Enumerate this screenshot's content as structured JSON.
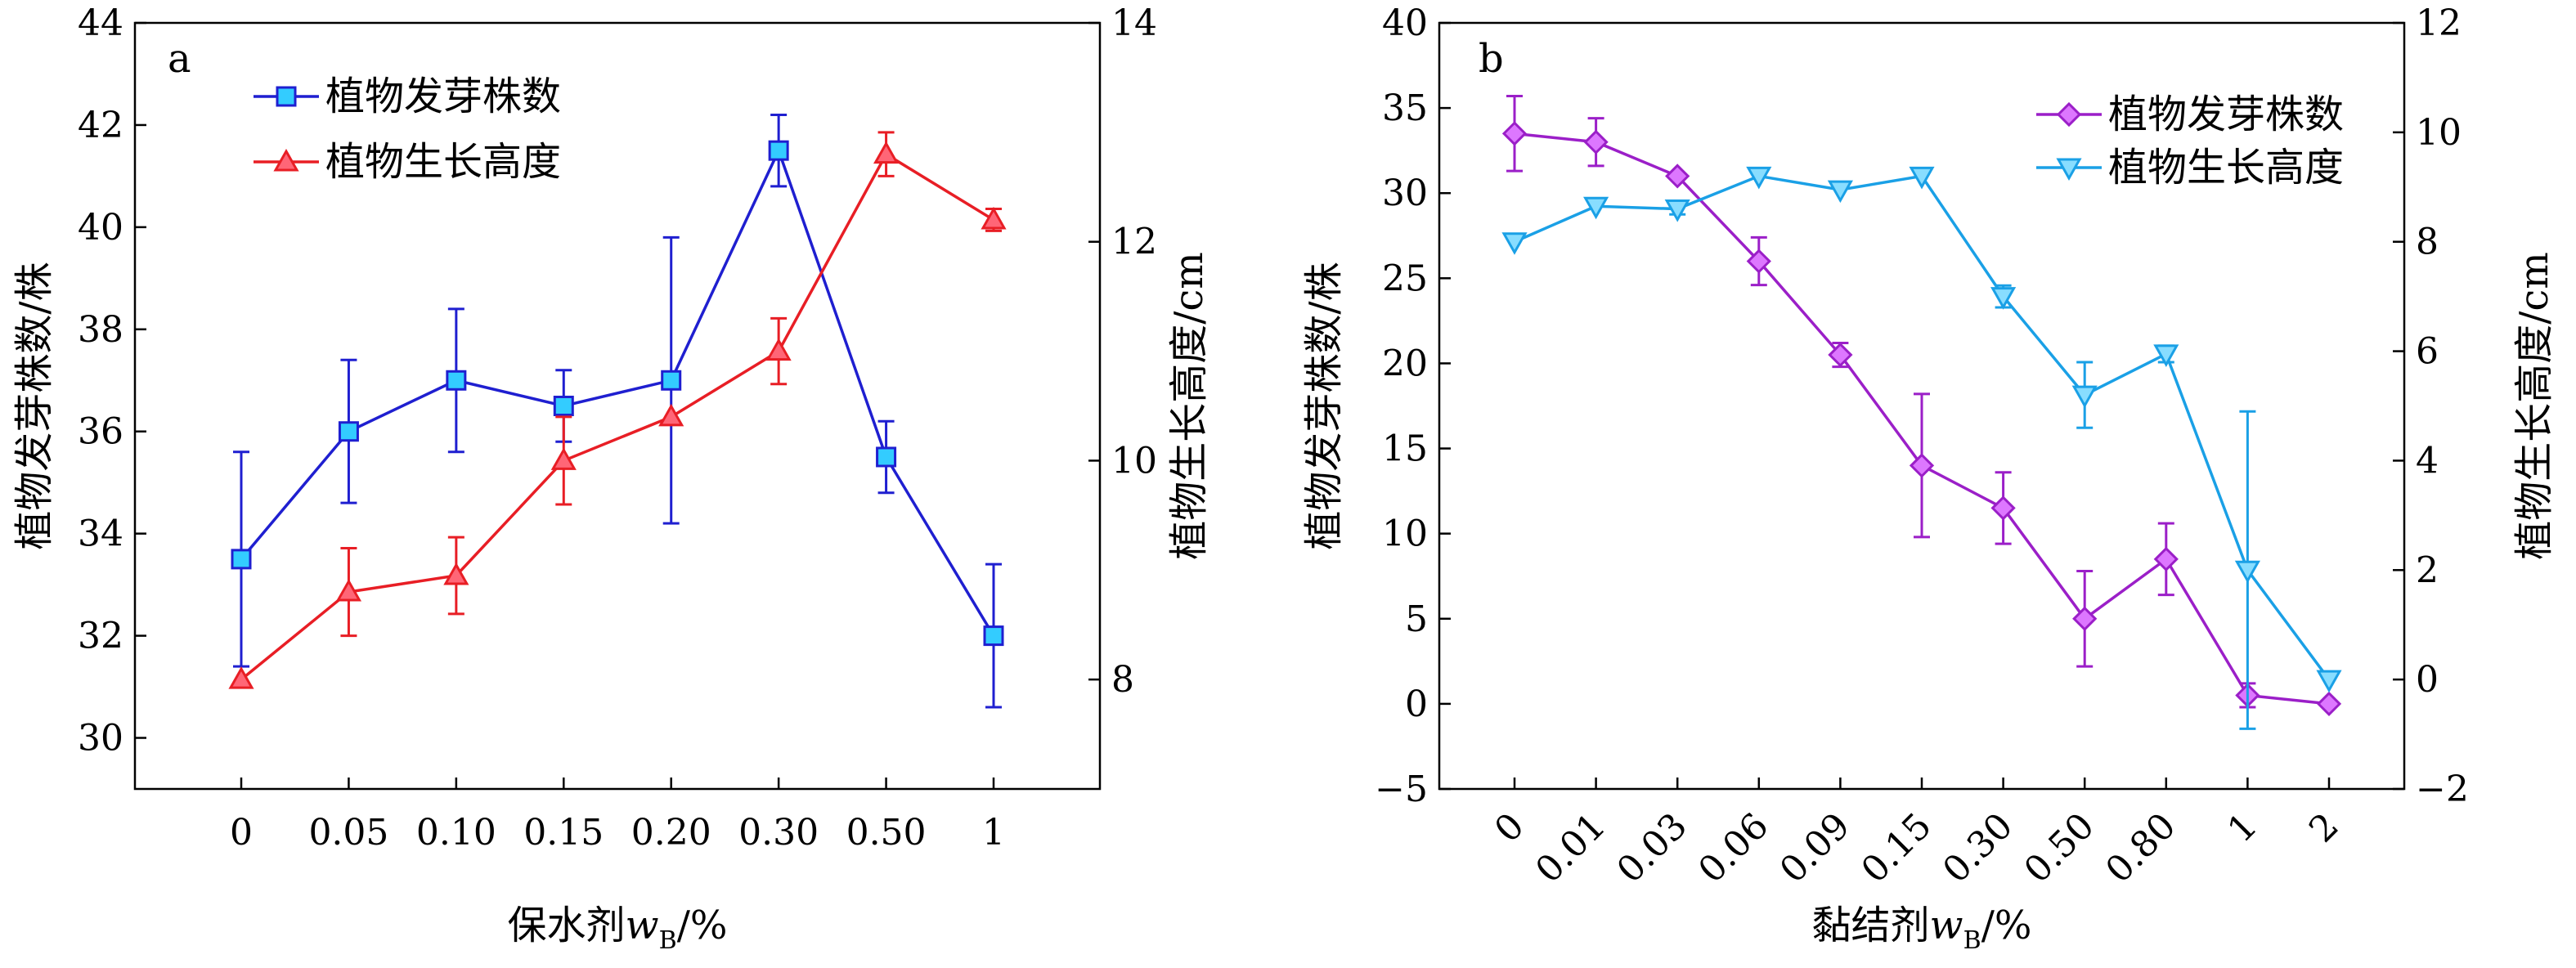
{
  "chart_data": [
    {
      "type": "line",
      "panel_label": "a",
      "xlabel_prefix": "保水剂",
      "xlabel_var": "w",
      "xlabel_sub": "B",
      "xlabel_suffix": "/%",
      "categories": [
        "0",
        "0.05",
        "0.10",
        "0.15",
        "0.20",
        "0.30",
        "0.50",
        "1"
      ],
      "ylabel_left": "植物发芽株数/株",
      "ylabel_right": "植物生长高度/cm",
      "ylim_left": [
        29,
        44
      ],
      "yticks_left": [
        "30",
        "32",
        "34",
        "36",
        "38",
        "40",
        "42",
        "44"
      ],
      "ylim_right": [
        7,
        14
      ],
      "yticks_right": [
        "8",
        "10",
        "12",
        "14"
      ],
      "legend_position": "top-left",
      "series": [
        {
          "name": "植物发芽株数",
          "axis": "left",
          "color": "#1f1fd0",
          "marker": "square",
          "marker_fill": "#33ccff",
          "values": [
            33.5,
            36.0,
            37.0,
            36.5,
            37.0,
            41.5,
            35.5,
            32.0
          ],
          "errors": [
            2.1,
            1.4,
            1.4,
            0.7,
            2.8,
            0.7,
            0.7,
            1.4
          ]
        },
        {
          "name": "植物生长高度",
          "axis": "right",
          "color": "#e81e25",
          "marker": "triangle-up",
          "marker_fill": "#ff6677",
          "values": [
            8.0,
            8.8,
            8.95,
            10.0,
            10.4,
            11.0,
            12.8,
            12.2
          ],
          "errors": [
            0.0,
            0.4,
            0.35,
            0.4,
            0.0,
            0.3,
            0.2,
            0.1
          ]
        }
      ]
    },
    {
      "type": "line",
      "panel_label": "b",
      "xlabel_prefix": "黏结剂",
      "xlabel_var": "w",
      "xlabel_sub": "B",
      "xlabel_suffix": "/%",
      "categories": [
        "0",
        "0.01",
        "0.03",
        "0.06",
        "0.09",
        "0.15",
        "0.30",
        "0.50",
        "0.80",
        "1",
        "2"
      ],
      "ylabel_left": "植物发芽株数/株",
      "ylabel_right": "植物生长高度/cm",
      "ylim_left": [
        -5,
        40
      ],
      "yticks_left": [
        "−5",
        "0",
        "5",
        "10",
        "15",
        "20",
        "25",
        "30",
        "35",
        "40"
      ],
      "ylim_right": [
        -2,
        12
      ],
      "yticks_right": [
        "−2",
        "0",
        "2",
        "4",
        "6",
        "8",
        "10",
        "12"
      ],
      "legend_position": "top-right",
      "series": [
        {
          "name": "植物发芽株数",
          "axis": "left",
          "color": "#9b1fc8",
          "marker": "diamond",
          "marker_fill": "#dd77ff",
          "values": [
            33.5,
            33.0,
            31.0,
            26.0,
            20.5,
            14.0,
            11.5,
            5.0,
            8.5,
            0.5,
            0.0
          ],
          "errors": [
            2.2,
            1.4,
            0.0,
            1.4,
            0.7,
            4.2,
            2.1,
            2.8,
            2.1,
            0.7,
            0.0
          ]
        },
        {
          "name": "植物生长高度",
          "axis": "right",
          "color": "#1aa0e6",
          "marker": "triangle-down",
          "marker_fill": "#88ddff",
          "values": [
            8.0,
            8.65,
            8.6,
            9.2,
            8.95,
            9.2,
            7.0,
            5.2,
            5.95,
            2.0,
            0.0
          ],
          "errors": [
            0.0,
            0.0,
            0.1,
            0.0,
            0.0,
            0.0,
            0.2,
            0.6,
            0.15,
            2.9,
            0.0
          ]
        }
      ]
    }
  ]
}
